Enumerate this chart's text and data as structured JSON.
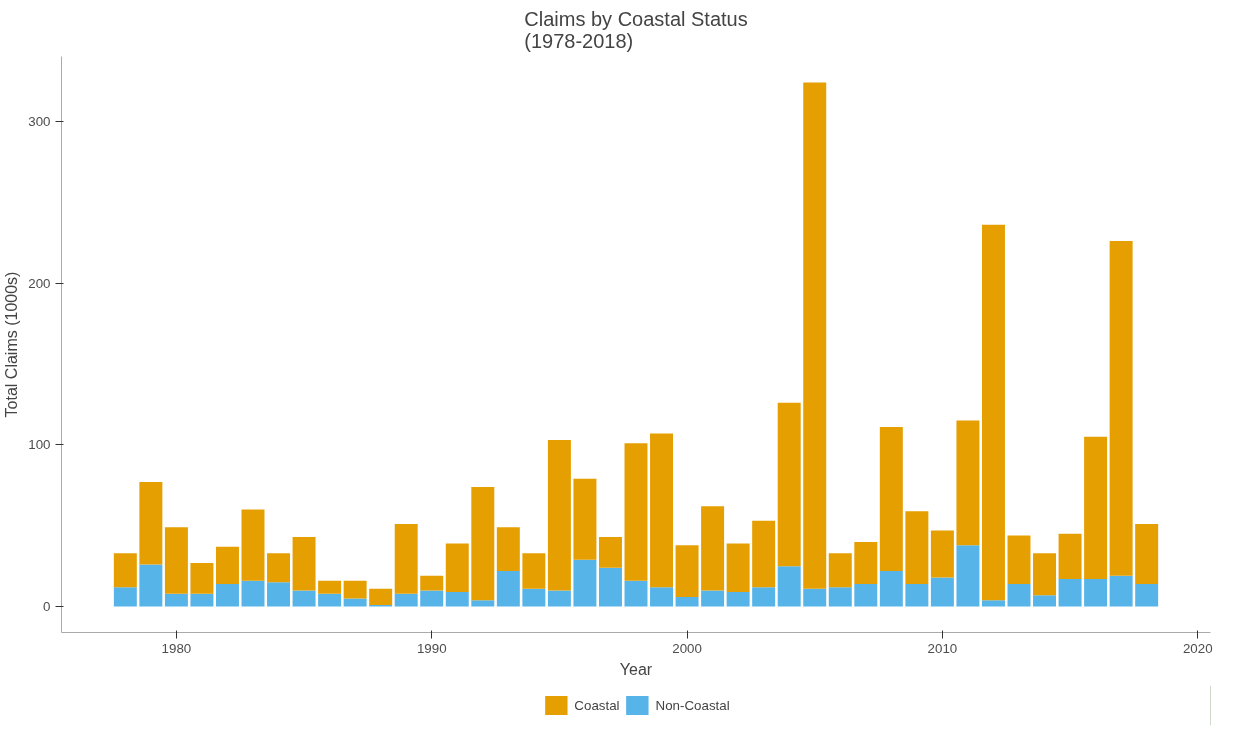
{
  "chart_data": {
    "type": "bar",
    "title": "Claims by Coastal Status\n(1978-2018)",
    "xlabel": "Year",
    "ylabel": "Total Claims (1000s)",
    "x": [
      1978,
      1979,
      1980,
      1981,
      1982,
      1983,
      1984,
      1985,
      1986,
      1987,
      1988,
      1989,
      1990,
      1991,
      1992,
      1993,
      1994,
      1995,
      1996,
      1997,
      1998,
      1999,
      2000,
      2001,
      2002,
      2003,
      2004,
      2005,
      2006,
      2007,
      2008,
      2009,
      2010,
      2011,
      2012,
      2013,
      2014,
      2015,
      2016,
      2017,
      2018
    ],
    "stacked": true,
    "series": [
      {
        "name": "Non-Coastal",
        "color": "#56b4e9",
        "values": [
          12,
          26,
          8,
          8,
          14,
          16,
          15,
          10,
          8,
          5,
          1,
          8,
          10,
          9,
          4,
          22,
          11,
          10,
          29,
          24,
          16,
          12,
          6,
          10,
          9,
          12,
          25,
          11,
          12,
          14,
          22,
          14,
          18,
          38,
          4,
          14,
          7,
          17,
          17,
          19,
          14
        ]
      },
      {
        "name": "Coastal",
        "color": "#e69f00",
        "values": [
          21,
          51,
          41,
          19,
          23,
          44,
          18,
          33,
          8,
          11,
          10,
          43,
          9,
          30,
          70,
          27,
          22,
          93,
          50,
          19,
          85,
          95,
          32,
          52,
          30,
          41,
          101,
          313,
          21,
          26,
          89,
          45,
          29,
          77,
          232,
          30,
          26,
          28,
          88,
          207,
          37
        ]
      }
    ],
    "xlim": [
      1975.5,
      2020.5
    ],
    "xticks": [
      1980,
      1990,
      2000,
      2010,
      2020
    ],
    "ylim": [
      -16,
      340
    ],
    "yticks": [
      0,
      100,
      200,
      300
    ],
    "grid": false,
    "legend": "bottom"
  }
}
